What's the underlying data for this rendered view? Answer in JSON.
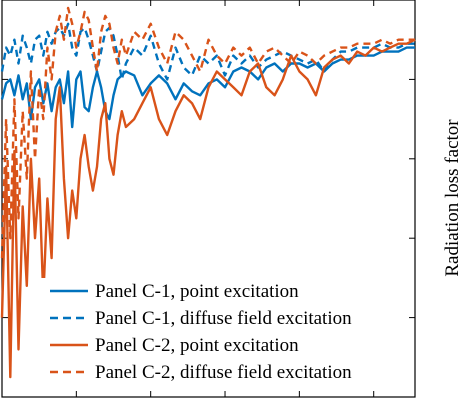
{
  "chart_data": {
    "type": "line",
    "title": "",
    "xlabel": "",
    "ylabel": "Radiation loss factor",
    "grid": false,
    "legend_position": "bottom-right",
    "xlim": [
      0,
      100
    ],
    "ylim": [
      0,
      100
    ],
    "series": [
      {
        "name": "Panel C-1, point excitation",
        "color": "#0072BD",
        "style": "solid",
        "x": [
          0,
          1,
          2,
          3,
          4,
          5,
          6,
          7,
          8,
          9,
          10,
          11,
          12,
          13,
          14,
          15,
          16,
          17,
          18,
          19,
          20,
          21,
          22,
          23,
          24,
          25,
          26,
          27,
          28,
          29,
          30,
          32,
          34,
          36,
          38,
          40,
          42,
          44,
          46,
          48,
          50,
          52,
          54,
          56,
          58,
          60,
          62,
          64,
          66,
          68,
          70,
          72,
          74,
          76,
          78,
          80,
          82,
          84,
          86,
          88,
          90,
          92,
          94,
          96,
          98,
          100
        ],
        "y": [
          75,
          79,
          80,
          76,
          81,
          75,
          79,
          70,
          78,
          80,
          74,
          79,
          72,
          78,
          80,
          74,
          82,
          68,
          80,
          82,
          73,
          72,
          78,
          82,
          78,
          72,
          70,
          76,
          80,
          81,
          82,
          81,
          76,
          79,
          81,
          79,
          75,
          79,
          77,
          76,
          79,
          80,
          78,
          82,
          83,
          82,
          80,
          83,
          84,
          82,
          84,
          84,
          83,
          84,
          82,
          84,
          85,
          85,
          86,
          86,
          86,
          87,
          87,
          87,
          88,
          88
        ]
      },
      {
        "name": "Panel C-1, diffuse field excitation",
        "color": "#0072BD",
        "style": "dashed",
        "x": [
          0,
          1,
          2,
          3,
          4,
          5,
          6,
          7,
          8,
          9,
          10,
          11,
          12,
          13,
          14,
          15,
          16,
          17,
          18,
          19,
          20,
          21,
          22,
          23,
          24,
          25,
          26,
          27,
          28,
          29,
          30,
          32,
          34,
          36,
          38,
          40,
          42,
          44,
          46,
          48,
          50,
          52,
          54,
          56,
          58,
          60,
          62,
          64,
          66,
          68,
          70,
          72,
          74,
          76,
          78,
          80,
          82,
          84,
          86,
          88,
          90,
          92,
          94,
          96,
          98,
          100
        ],
        "y": [
          82,
          88,
          86,
          90,
          84,
          91,
          88,
          84,
          90,
          91,
          86,
          92,
          89,
          92,
          93,
          91,
          94,
          88,
          86,
          92,
          93,
          90,
          86,
          82,
          87,
          92,
          93,
          91,
          86,
          80,
          84,
          88,
          86,
          91,
          84,
          80,
          88,
          83,
          81,
          86,
          84,
          86,
          81,
          86,
          84,
          86,
          83,
          85,
          86,
          87,
          86,
          85,
          84,
          85,
          82,
          85,
          87,
          87,
          88,
          88,
          88,
          89,
          88,
          88,
          89,
          89
        ]
      },
      {
        "name": "Panel C-2, point excitation",
        "color": "#D95319",
        "style": "solid",
        "x": [
          0,
          1,
          2,
          3,
          4,
          5,
          6,
          7,
          8,
          9,
          10,
          11,
          12,
          13,
          14,
          15,
          16,
          17,
          18,
          19,
          20,
          21,
          22,
          23,
          24,
          25,
          26,
          27,
          28,
          29,
          30,
          32,
          34,
          36,
          38,
          40,
          42,
          44,
          46,
          48,
          50,
          52,
          54,
          56,
          58,
          60,
          62,
          64,
          66,
          68,
          70,
          72,
          74,
          76,
          78,
          80,
          82,
          84,
          86,
          88,
          90,
          92,
          94,
          96,
          98,
          100
        ],
        "y": [
          20,
          58,
          5,
          62,
          12,
          48,
          28,
          60,
          40,
          55,
          25,
          50,
          35,
          70,
          78,
          55,
          40,
          52,
          45,
          60,
          66,
          58,
          52,
          58,
          70,
          74,
          60,
          56,
          66,
          72,
          68,
          70,
          74,
          78,
          70,
          66,
          72,
          76,
          74,
          70,
          78,
          82,
          80,
          78,
          76,
          82,
          84,
          78,
          76,
          80,
          86,
          82,
          80,
          76,
          83,
          85,
          86,
          84,
          87,
          86,
          88,
          87,
          88,
          89,
          89,
          90
        ]
      },
      {
        "name": "Panel C-2, diffuse field excitation",
        "color": "#D95319",
        "style": "dashed",
        "x": [
          0,
          1,
          2,
          3,
          4,
          5,
          6,
          7,
          8,
          9,
          10,
          11,
          12,
          13,
          14,
          15,
          16,
          17,
          18,
          19,
          20,
          21,
          22,
          23,
          24,
          25,
          26,
          27,
          28,
          29,
          30,
          32,
          34,
          36,
          38,
          40,
          42,
          44,
          46,
          48,
          50,
          52,
          54,
          56,
          58,
          60,
          62,
          64,
          66,
          68,
          70,
          72,
          74,
          76,
          78,
          80,
          82,
          84,
          86,
          88,
          90,
          92,
          94,
          96,
          98,
          100
        ],
        "y": [
          35,
          70,
          40,
          75,
          45,
          72,
          55,
          82,
          60,
          78,
          70,
          88,
          80,
          92,
          96,
          90,
          98,
          94,
          88,
          92,
          97,
          95,
          88,
          82,
          92,
          96,
          94,
          88,
          84,
          90,
          86,
          92,
          90,
          94,
          88,
          84,
          92,
          90,
          86,
          82,
          90,
          86,
          84,
          88,
          86,
          88,
          84,
          87,
          88,
          86,
          84,
          87,
          86,
          84,
          86,
          87,
          88,
          88,
          89,
          89,
          89,
          90,
          89,
          90,
          90,
          90
        ]
      }
    ]
  }
}
